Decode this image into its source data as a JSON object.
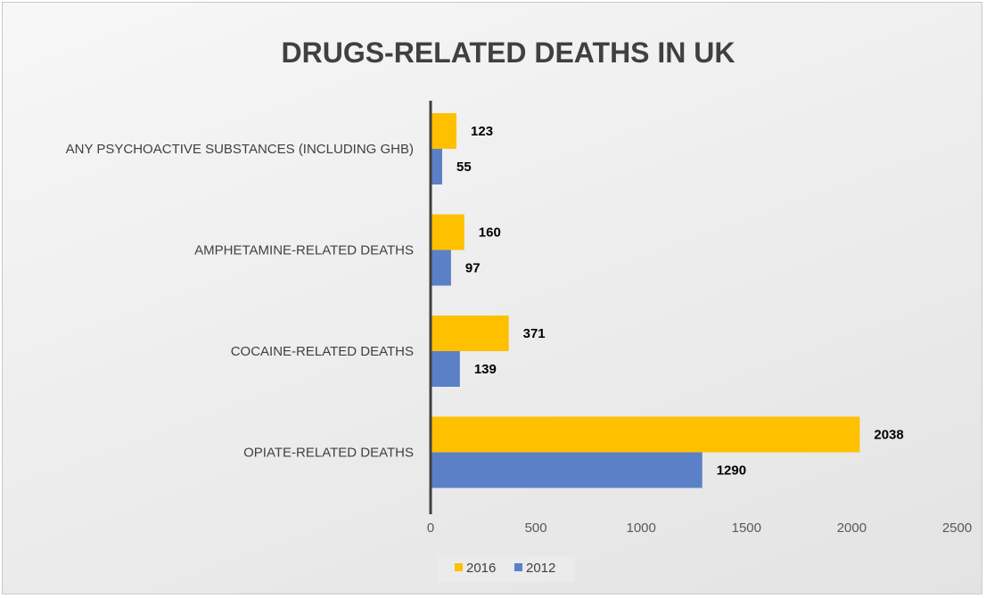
{
  "chart_data": {
    "type": "bar",
    "orientation": "horizontal",
    "title": "DRUGS-RELATED DEATHS IN UK",
    "categories": [
      "OPIATE-RELATED DEATHS",
      "COCAINE-RELATED DEATHS",
      "AMPHETAMINE-RELATED DEATHS",
      "ANY PSYCHOACTIVE SUBSTANCES (INCLUDING GHB)"
    ],
    "series": [
      {
        "name": "2016",
        "color": "#FFC000",
        "values": [
          2038,
          371,
          160,
          123
        ]
      },
      {
        "name": "2012",
        "color": "#5B80C8",
        "values": [
          1290,
          139,
          97,
          55
        ]
      }
    ],
    "xlim": [
      0,
      2500
    ],
    "xticks": [
      0,
      500,
      1000,
      1500,
      2000,
      2500
    ],
    "grid": false,
    "legend_position": "bottom",
    "data_labels": true
  }
}
